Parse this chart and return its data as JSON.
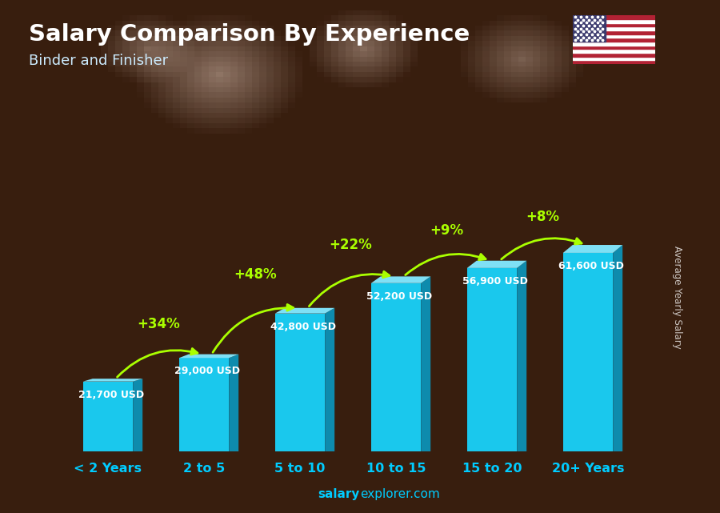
{
  "categories": [
    "< 2 Years",
    "2 to 5",
    "5 to 10",
    "10 to 15",
    "15 to 20",
    "20+ Years"
  ],
  "values": [
    21700,
    29000,
    42800,
    52200,
    56900,
    61600
  ],
  "salary_labels": [
    "21,700 USD",
    "29,000 USD",
    "42,800 USD",
    "52,200 USD",
    "56,900 USD",
    "61,600 USD"
  ],
  "pct_changes": [
    "+34%",
    "+48%",
    "+22%",
    "+9%",
    "+8%"
  ],
  "bar_color_face": "#1AC8ED",
  "bar_color_top": "#7FE0F5",
  "bar_color_side": "#0E8BAD",
  "bg_color": "#3a1e0e",
  "title": "Salary Comparison By Experience",
  "subtitle": "Binder and Finisher",
  "ylabel": "Average Yearly Salary",
  "footer": "salaryexplorer.com",
  "footer_bold": "salary",
  "title_color": "#FFFFFF",
  "subtitle_color": "#CCECFF",
  "label_color": "#FFFFFF",
  "pct_color": "#AAFF00",
  "footer_color": "#00CCFF",
  "xlabel_color": "#00CCFF"
}
